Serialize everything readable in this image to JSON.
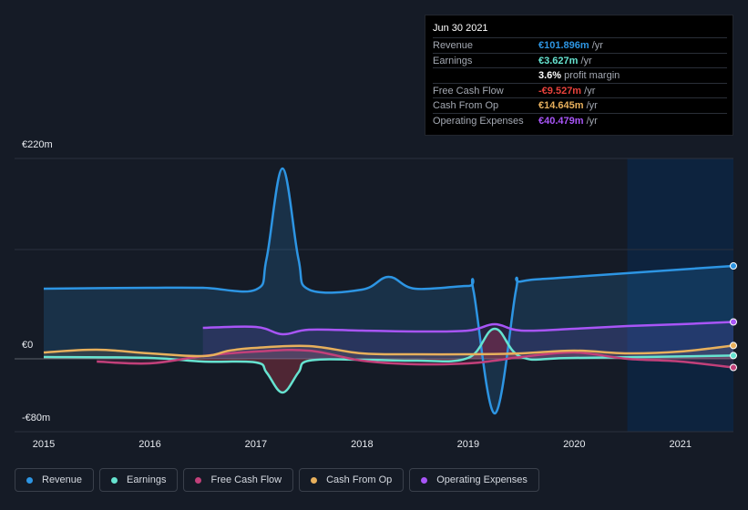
{
  "tooltip": {
    "date": "Jun 30 2021",
    "rows": [
      {
        "label": "Revenue",
        "value": "€101.896m",
        "unit": "/yr",
        "color": "#2d95e3"
      },
      {
        "label": "Earnings",
        "value": "€3.627m",
        "unit": "/yr",
        "color": "#66e3d0"
      },
      {
        "label": "",
        "value": "3.6%",
        "unit": "profit margin",
        "color": "#ffffff"
      },
      {
        "label": "Free Cash Flow",
        "value": "-€9.527m",
        "unit": "/yr",
        "color": "#e8423c"
      },
      {
        "label": "Cash From Op",
        "value": "€14.645m",
        "unit": "/yr",
        "color": "#e8b05c"
      },
      {
        "label": "Operating Expenses",
        "value": "€40.479m",
        "unit": "/yr",
        "color": "#a855f7"
      }
    ]
  },
  "legend": [
    {
      "label": "Revenue",
      "color": "#2d95e3"
    },
    {
      "label": "Earnings",
      "color": "#66e3d0"
    },
    {
      "label": "Free Cash Flow",
      "color": "#c2407a"
    },
    {
      "label": "Cash From Op",
      "color": "#e8b05c"
    },
    {
      "label": "Operating Expenses",
      "color": "#a855f7"
    }
  ],
  "chart_data": {
    "type": "line",
    "y_tick_labels": [
      "€220m",
      "€0",
      "-€80m"
    ],
    "ylim": [
      -80,
      220
    ],
    "x_tick_labels": [
      "2015",
      "2016",
      "2017",
      "2018",
      "2019",
      "2020",
      "2021"
    ],
    "xlim": [
      2015.0,
      2021.5
    ],
    "grid": true,
    "legend_position": "bottom",
    "forecast_shade_start": 2020.5,
    "series": [
      {
        "name": "Revenue",
        "color": "#2d95e3",
        "x": [
          2015.0,
          2016.0,
          2016.5,
          2017.0,
          2017.1,
          2017.25,
          2017.4,
          2017.5,
          2018.0,
          2018.25,
          2018.5,
          2019.0,
          2019.05,
          2019.25,
          2019.45,
          2019.5,
          2020.0,
          2021.5
        ],
        "values": [
          77,
          78,
          78,
          76,
          110,
          209,
          110,
          76,
          76,
          90,
          77,
          80,
          75,
          -60,
          75,
          85,
          90,
          102
        ]
      },
      {
        "name": "Earnings",
        "color": "#66e3d0",
        "x": [
          2015.0,
          2016.0,
          2016.5,
          2017.0,
          2017.1,
          2017.25,
          2017.4,
          2017.5,
          2018.0,
          2018.5,
          2019.0,
          2019.25,
          2019.5,
          2020.0,
          2021.5
        ],
        "values": [
          2,
          1,
          -3,
          -4,
          -15,
          -37,
          -15,
          -2,
          -1,
          -2,
          1,
          33,
          2,
          1,
          3.6
        ]
      },
      {
        "name": "Free Cash Flow",
        "color": "#c2407a",
        "x": [
          2015.5,
          2016.0,
          2016.5,
          2017.0,
          2017.5,
          2018.0,
          2018.5,
          2019.0,
          2019.25,
          2019.5,
          2020.0,
          2020.5,
          2021.0,
          2021.5
        ],
        "values": [
          -3,
          -5,
          3,
          8,
          9,
          -2,
          -6,
          -5,
          -2,
          2,
          7,
          0,
          -3,
          -9.5
        ]
      },
      {
        "name": "Cash From Op",
        "color": "#e8b05c",
        "x": [
          2015.0,
          2015.5,
          2016.0,
          2016.5,
          2016.75,
          2017.0,
          2017.5,
          2018.0,
          2018.5,
          2019.0,
          2019.5,
          2020.0,
          2020.5,
          2021.0,
          2021.5
        ],
        "values": [
          7,
          10,
          6,
          3,
          9,
          12,
          14,
          6,
          5,
          5,
          6,
          9,
          6,
          8,
          14.6
        ]
      },
      {
        "name": "Operating Expenses",
        "color": "#a855f7",
        "x": [
          2016.5,
          2017.0,
          2017.25,
          2017.5,
          2018.0,
          2018.5,
          2019.0,
          2019.25,
          2019.5,
          2020.0,
          2020.5,
          2021.0,
          2021.5
        ],
        "values": [
          34,
          35,
          27,
          32,
          31,
          30,
          31,
          38,
          31,
          33,
          36,
          38,
          40.5
        ]
      }
    ]
  }
}
